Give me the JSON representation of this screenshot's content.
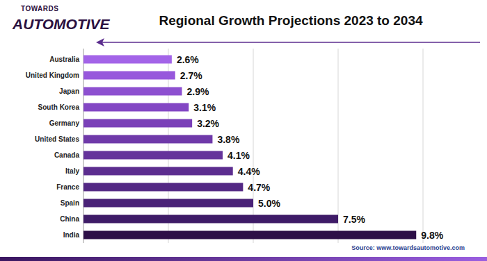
{
  "chart_data": {
    "type": "bar",
    "title": "Regional Growth Projections 2023 to 2034",
    "logo": [
      "TOWARDS",
      "AUTOMOTIVE"
    ],
    "source": "Source: www.towardsautomotive.com",
    "orientation": "horizontal",
    "categories": [
      "Australia",
      "United Kingdom",
      "Japan",
      "South Korea",
      "Germany",
      "United States",
      "Canada",
      "Italy",
      "France",
      "Spain",
      "China",
      "India"
    ],
    "values": [
      2.6,
      2.7,
      2.9,
      3.1,
      3.2,
      3.8,
      4.1,
      4.4,
      4.7,
      5.0,
      7.5,
      9.8
    ],
    "value_labels": [
      "2.6%",
      "2.7%",
      "2.9%",
      "3.1%",
      "3.2%",
      "3.8%",
      "4.1%",
      "4.4%",
      "4.7%",
      "5.0%",
      "7.5%",
      "9.8%"
    ],
    "colors": [
      "#a364e8",
      "#9758dc",
      "#8d50d0",
      "#8347c4",
      "#7a40b8",
      "#6f39a9",
      "#65339b",
      "#5c2d8f",
      "#532884",
      "#4a2277",
      "#3e1b67",
      "#2d0f47"
    ],
    "xlim": [
      0,
      10
    ],
    "xticks": [
      0,
      2.5,
      5,
      7.5,
      10
    ],
    "grid": true,
    "data_labels": true,
    "tick_labels": false
  }
}
